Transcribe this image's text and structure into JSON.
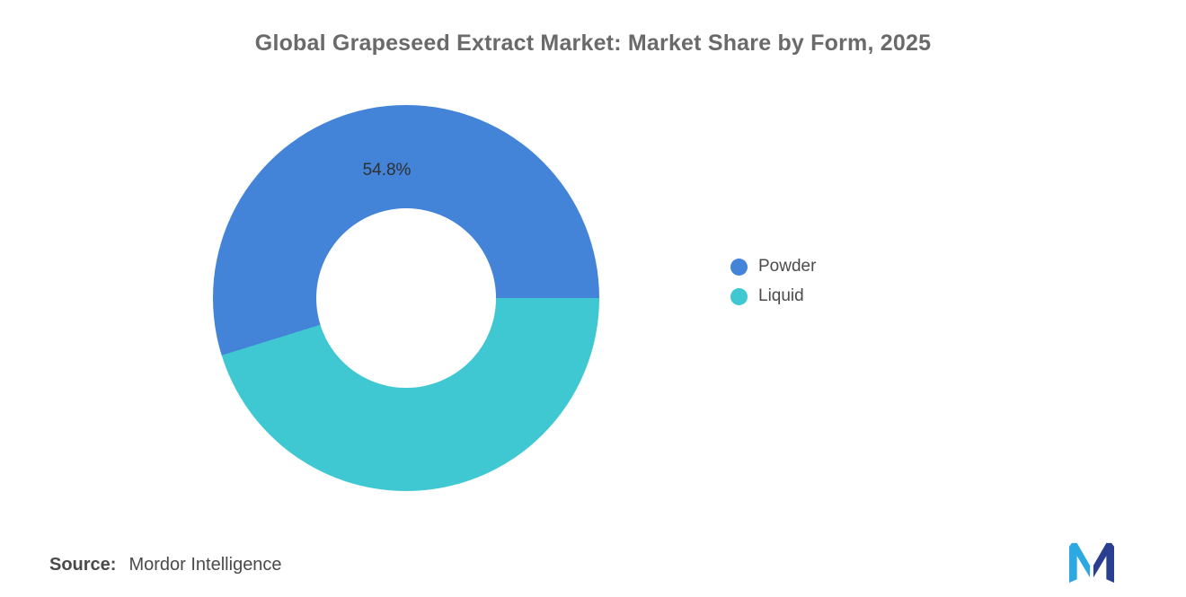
{
  "chart_data": {
    "type": "pie",
    "donut": true,
    "title": "Global Grapeseed Extract Market: Market Share by Form, 2025",
    "categories": [
      "Powder",
      "Liquid"
    ],
    "values": [
      54.8,
      45.2
    ],
    "colors": [
      "#4384D8",
      "#3FC8D1"
    ],
    "data_label": "54.8%",
    "start_angle_deg": 90,
    "hole_ratio": 0.465,
    "legend_position": "right"
  },
  "legend": {
    "items": [
      {
        "label": "Powder",
        "color": "#4384D8"
      },
      {
        "label": "Liquid",
        "color": "#3FC8D1"
      }
    ]
  },
  "source": {
    "label": "Source:",
    "value": "Mordor Intelligence"
  },
  "logo": {
    "name": "mordor-intelligence-logo",
    "color_dark": "#2B3F90",
    "color_light": "#2BA9E0"
  }
}
